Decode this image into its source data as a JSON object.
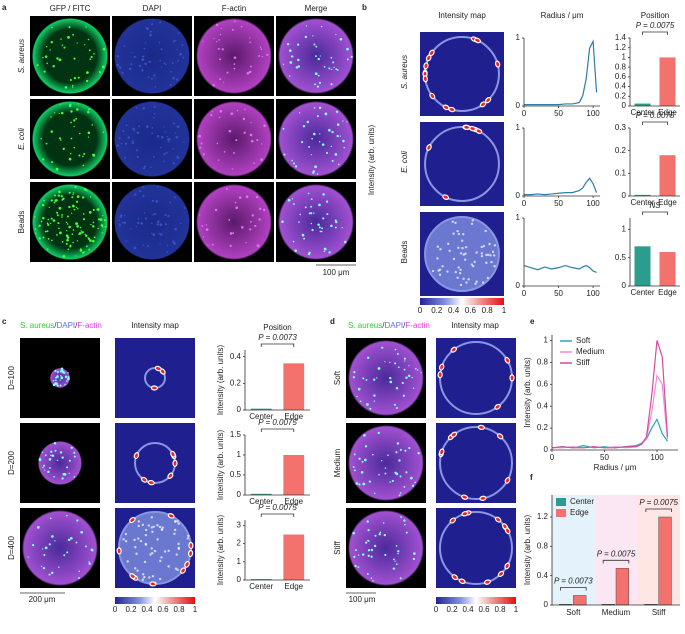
{
  "panels": {
    "a": {
      "letter": "a",
      "columns": [
        "GFP / FITC",
        "DAPI",
        "F-actin",
        "Merge"
      ],
      "rows": [
        "S. aureus",
        "E. coli",
        "Beads"
      ],
      "scale": "100 μm"
    },
    "b": {
      "letter": "b",
      "map_header": "Intensity map",
      "ylabel": "Intensity (arb. units)",
      "rows": [
        "S. aureus",
        "E. coli",
        "Beads"
      ],
      "colorbar": [
        0,
        0.2,
        0.4,
        0.6,
        0.8,
        1
      ]
    },
    "c": {
      "letter": "c",
      "legend": [
        "S. aureus",
        "/",
        "DAPI",
        "/",
        "F-actin"
      ],
      "map_header": "Intensity map",
      "rows": [
        "D=100",
        "D=200",
        "D=400"
      ],
      "scale": "200 μm",
      "colorbar": [
        0,
        0.2,
        0.4,
        0.6,
        0.8,
        1
      ]
    },
    "d": {
      "letter": "d",
      "legend": [
        "S. aureus",
        "/",
        "DAPI",
        "/",
        "F-actin"
      ],
      "map_header": "Intensity map",
      "rows": [
        "Soft",
        "Medium",
        "Stiff"
      ],
      "scale": "100 μm",
      "colorbar": [
        0,
        0.2,
        0.4,
        0.6,
        0.8,
        1
      ]
    },
    "e": {
      "letter": "e"
    },
    "f": {
      "letter": "f"
    }
  },
  "chart_data": [
    {
      "type": "line",
      "title": "Radius / μm",
      "x": [
        0,
        10,
        20,
        30,
        40,
        50,
        60,
        70,
        80,
        85,
        90,
        95,
        100,
        105
      ],
      "values": [
        0.02,
        0.02,
        0.02,
        0.02,
        0.02,
        0.02,
        0.03,
        0.03,
        0.05,
        0.15,
        0.4,
        0.85,
        0.95,
        0.2
      ],
      "color": "#2b7fa6",
      "xlim": [
        0,
        110
      ],
      "ylim": [
        0,
        1
      ],
      "xticks": [
        0,
        50,
        100
      ],
      "yticks": [
        0,
        1
      ]
    },
    {
      "type": "line",
      "x": [
        0,
        10,
        20,
        30,
        40,
        50,
        60,
        70,
        80,
        85,
        90,
        95,
        100,
        105
      ],
      "values": [
        0.02,
        0.02,
        0.03,
        0.02,
        0.03,
        0.04,
        0.05,
        0.05,
        0.08,
        0.12,
        0.2,
        0.26,
        0.18,
        0.05
      ],
      "color": "#2b7fa6",
      "xlim": [
        0,
        110
      ],
      "ylim": [
        0,
        1
      ],
      "xticks": [
        0,
        50,
        100
      ],
      "yticks": [
        0,
        1
      ]
    },
    {
      "type": "line",
      "x": [
        0,
        10,
        20,
        30,
        40,
        50,
        60,
        70,
        80,
        85,
        90,
        95,
        100,
        105
      ],
      "values": [
        0.3,
        0.27,
        0.24,
        0.28,
        0.25,
        0.27,
        0.3,
        0.27,
        0.25,
        0.28,
        0.3,
        0.27,
        0.22,
        0.2
      ],
      "color": "#2b7fa6",
      "xlim": [
        0,
        110
      ],
      "ylim": [
        0,
        1
      ],
      "xticks": [
        0,
        50,
        100
      ],
      "yticks": [
        0,
        1
      ]
    },
    {
      "type": "bar",
      "title": "Position",
      "categories": [
        "Center",
        "Edge"
      ],
      "values": [
        0.05,
        1.0
      ],
      "colors": [
        "#2a9d8f",
        "#f4726d"
      ],
      "ylim": [
        0,
        1.4
      ],
      "yticks": [
        0,
        0.2,
        0.4,
        0.6,
        0.8,
        1,
        1.2,
        1.4
      ],
      "annotations": [
        "P = 0.0075"
      ]
    },
    {
      "type": "bar",
      "categories": [
        "Center",
        "Edge"
      ],
      "values": [
        0.005,
        0.18
      ],
      "colors": [
        "#2a9d8f",
        "#f4726d"
      ],
      "ylim": [
        0,
        0.3
      ],
      "yticks": [
        0,
        0.1,
        0.2,
        0.3
      ],
      "annotations": [
        "P = 0.0075"
      ]
    },
    {
      "type": "bar",
      "categories": [
        "Center",
        "Edge"
      ],
      "values": [
        0.7,
        0.6
      ],
      "colors": [
        "#2a9d8f",
        "#f4726d"
      ],
      "ylim": [
        0,
        1.2
      ],
      "yticks": [
        0,
        0.5,
        1
      ],
      "annotations": [
        "NS"
      ]
    },
    {
      "type": "bar",
      "title": "Position",
      "ylabel": "Intensity (arb. units)",
      "categories": [
        "Center",
        "Edge"
      ],
      "values": [
        0.01,
        0.35
      ],
      "colors": [
        "#2a9d8f",
        "#f4726d"
      ],
      "ylim": [
        0,
        0.45
      ],
      "yticks": [
        0,
        0.2,
        0.4
      ],
      "annotations": [
        "P = 0.0073"
      ]
    },
    {
      "type": "bar",
      "ylabel": "Intensity (arb. units)",
      "categories": [
        "Center",
        "Edge"
      ],
      "values": [
        0.03,
        1.0
      ],
      "colors": [
        "#2a9d8f",
        "#f4726d"
      ],
      "ylim": [
        0,
        1.5
      ],
      "yticks": [
        0,
        0.5,
        1,
        1.5
      ],
      "annotations": [
        "P = 0.0075"
      ]
    },
    {
      "type": "bar",
      "ylabel": "Intensity (arb. units)",
      "categories": [
        "Center",
        "Edge"
      ],
      "values": [
        0.05,
        2.5
      ],
      "colors": [
        "#2a9d8f",
        "#f4726d"
      ],
      "ylim": [
        0,
        3.3
      ],
      "yticks": [
        0,
        1,
        2,
        3
      ],
      "annotations": [
        "P = 0.0075"
      ]
    },
    {
      "type": "multiline",
      "xlabel": "Radius / μm",
      "ylabel": "Intensity (arb. units)",
      "x": [
        0,
        10,
        20,
        30,
        40,
        50,
        60,
        70,
        80,
        85,
        90,
        95,
        100,
        105,
        110
      ],
      "series": [
        {
          "name": "Soft",
          "color": "#2ba3b8",
          "values": [
            0.02,
            0.03,
            0.02,
            0.04,
            0.02,
            0.03,
            0.02,
            0.03,
            0.04,
            0.06,
            0.1,
            0.2,
            0.28,
            0.15,
            0.08
          ]
        },
        {
          "name": "Medium",
          "color": "#f08ad8",
          "values": [
            0.02,
            0.02,
            0.03,
            0.02,
            0.03,
            0.02,
            0.03,
            0.02,
            0.03,
            0.05,
            0.1,
            0.35,
            0.68,
            0.6,
            0.1
          ]
        },
        {
          "name": "Stiff",
          "color": "#d44c9a",
          "values": [
            0.02,
            0.03,
            0.02,
            0.02,
            0.03,
            0.02,
            0.02,
            0.03,
            0.03,
            0.05,
            0.12,
            0.5,
            1.0,
            0.85,
            0.12
          ]
        }
      ],
      "xlim": [
        0,
        120
      ],
      "ylim": [
        0,
        1.05
      ],
      "xticks": [
        0,
        50,
        100
      ],
      "yticks": [
        0,
        0.2,
        0.4,
        0.6,
        0.8,
        1
      ]
    },
    {
      "type": "grouped_bar",
      "ylabel": "Intensity (arb. units)",
      "categories": [
        "Soft",
        "Medium",
        "Stiff"
      ],
      "series": [
        {
          "name": "Center",
          "color": "#2a9d8f",
          "values": [
            0.01,
            0.01,
            0.01
          ]
        },
        {
          "name": "Edge",
          "color": "#f4726d",
          "values": [
            0.13,
            0.5,
            1.2
          ]
        }
      ],
      "ylim": [
        0,
        1.5
      ],
      "yticks": [
        0,
        0.4,
        0.8,
        1.2
      ],
      "annotations": [
        "P = 0.0073",
        "P = 0.0075",
        "P = 0.0075"
      ]
    }
  ]
}
